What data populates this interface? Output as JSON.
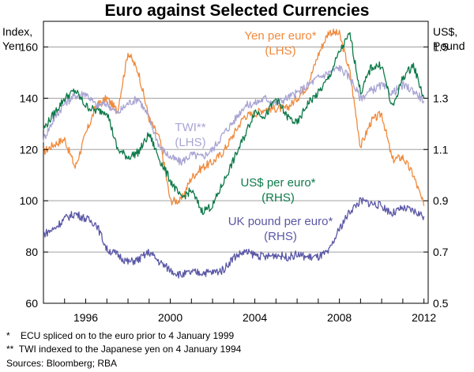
{
  "chart_data": {
    "type": "line",
    "title": "Euro against Selected Currencies",
    "left_axis_label": [
      "Index,",
      "Yen"
    ],
    "right_axis_label": [
      "US$,",
      "Pound"
    ],
    "x": [
      1994.0,
      1994.5,
      1995.0,
      1995.5,
      1996.0,
      1996.5,
      1997.0,
      1997.5,
      1998.0,
      1998.5,
      1999.0,
      1999.5,
      2000.0,
      2000.5,
      2001.0,
      2001.5,
      2002.0,
      2002.5,
      2003.0,
      2003.5,
      2004.0,
      2004.5,
      2005.0,
      2005.5,
      2006.0,
      2006.5,
      2007.0,
      2007.5,
      2008.0,
      2008.5,
      2009.0,
      2009.5,
      2010.0,
      2010.5,
      2011.0,
      2011.5,
      2012.0
    ],
    "xlim": [
      1994.0,
      2012.2
    ],
    "x_ticks": [
      1996,
      2000,
      2004,
      2008,
      2012
    ],
    "ylim_left": [
      60,
      170
    ],
    "y_ticks_left": [
      60,
      80,
      100,
      120,
      140,
      160
    ],
    "ylim_right": [
      0.5,
      1.6
    ],
    "y_ticks_right": [
      "0.5",
      "0.7",
      "0.9",
      "1.1",
      "1.3",
      "1.5"
    ],
    "series": [
      {
        "name": "Yen per euro*",
        "unit_line": "(LHS)",
        "axis": "left",
        "color": "#f08a3c",
        "values": [
          119,
          122,
          124,
          113,
          126,
          137,
          140,
          135,
          158,
          150,
          132,
          124,
          100,
          100,
          109,
          113,
          115,
          119,
          126,
          133,
          134,
          136,
          136,
          136,
          140,
          145,
          157,
          166,
          165,
          150,
          121,
          131,
          134,
          116,
          117,
          110,
          98
        ]
      },
      {
        "name": "TWI**",
        "unit_line": "(LHS)",
        "axis": "left",
        "color": "#a8a4d3",
        "values": [
          124,
          132,
          138,
          141,
          142,
          137,
          138,
          134,
          138,
          140,
          132,
          121,
          117,
          115,
          118,
          117,
          120,
          126,
          131,
          137,
          138,
          140,
          138,
          140,
          142,
          145,
          148,
          150,
          152,
          148,
          140,
          143,
          145,
          142,
          145,
          143,
          139
        ]
      },
      {
        "name": "US$ per euro*",
        "unit_line": "(RHS)",
        "axis": "right",
        "color": "#0e7a4a",
        "values": [
          1.18,
          1.24,
          1.3,
          1.33,
          1.27,
          1.25,
          1.25,
          1.1,
          1.07,
          1.09,
          1.16,
          1.06,
          0.98,
          0.91,
          0.94,
          0.86,
          0.88,
          0.97,
          1.06,
          1.15,
          1.25,
          1.23,
          1.3,
          1.23,
          1.2,
          1.28,
          1.32,
          1.38,
          1.48,
          1.55,
          1.32,
          1.42,
          1.43,
          1.26,
          1.38,
          1.43,
          1.3
        ]
      },
      {
        "name": "UK pound per euro*",
        "unit_line": "(RHS)",
        "axis": "right",
        "color": "#5a57a6",
        "values": [
          0.77,
          0.79,
          0.83,
          0.85,
          0.83,
          0.81,
          0.71,
          0.69,
          0.66,
          0.67,
          0.7,
          0.66,
          0.63,
          0.61,
          0.62,
          0.62,
          0.62,
          0.63,
          0.68,
          0.7,
          0.69,
          0.68,
          0.69,
          0.68,
          0.69,
          0.68,
          0.68,
          0.7,
          0.79,
          0.86,
          0.9,
          0.89,
          0.88,
          0.85,
          0.87,
          0.86,
          0.84
        ]
      }
    ]
  },
  "footnotes": [
    "*    ECU spliced on to the euro prior to 4 January 1999",
    "**  TWI indexed to the Japanese yen on 4 January 1994",
    "Sources: Bloomberg; RBA"
  ]
}
